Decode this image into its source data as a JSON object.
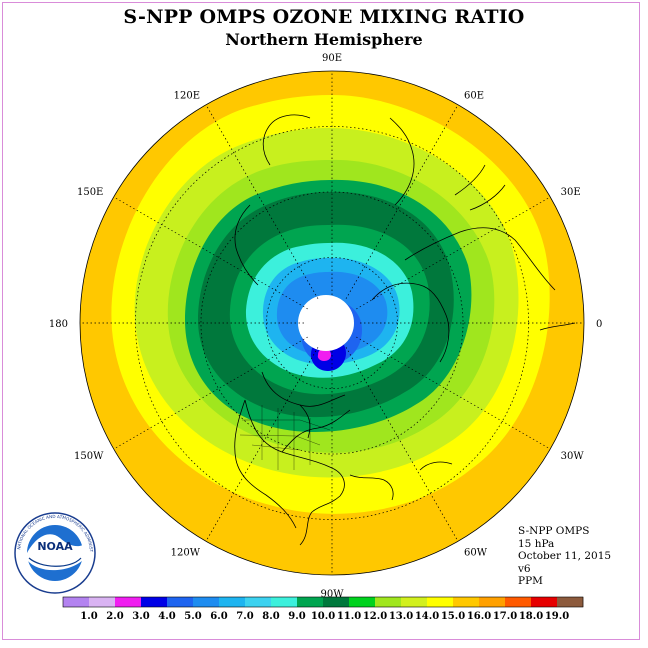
{
  "title": "S-NPP OMPS OZONE MIXING RATIO",
  "subtitle": "Northern Hemisphere",
  "meridian_labels": [
    {
      "lon": "90E",
      "angle": -90
    },
    {
      "lon": "60E",
      "angle": -60
    },
    {
      "lon": "30E",
      "angle": -30
    },
    {
      "lon": "0",
      "angle": 0
    },
    {
      "lon": "30W",
      "angle": 30
    },
    {
      "lon": "60W",
      "angle": 60
    },
    {
      "lon": "90W",
      "angle": 90
    },
    {
      "lon": "120W",
      "angle": 120
    },
    {
      "lon": "150W",
      "angle": 150
    },
    {
      "lon": "180",
      "angle": 180
    },
    {
      "lon": "150E",
      "angle": -150
    },
    {
      "lon": "120E",
      "angle": -120
    }
  ],
  "info": {
    "instrument": "S-NPP OMPS",
    "level": "15 hPa",
    "date": "October 11, 2015",
    "version": "v6",
    "units": "PPM"
  },
  "colorbar": {
    "ticks": [
      "1.0",
      "2.0",
      "3.0",
      "4.0",
      "5.0",
      "6.0",
      "7.0",
      "8.0",
      "9.0",
      "10.0",
      "11.0",
      "12.0",
      "13.0",
      "14.0",
      "15.0",
      "16.0",
      "17.0",
      "18.0",
      "19.0"
    ],
    "colors": [
      "#b383f0",
      "#d9b3f2",
      "#f01ef0",
      "#0000e6",
      "#1e64f0",
      "#1e8cf0",
      "#1eb4f0",
      "#3cd2f0",
      "#3cf0dc",
      "#00a550",
      "#00783c",
      "#00d21e",
      "#a0e61e",
      "#d2f01e",
      "#ffff00",
      "#ffc800",
      "#ffa000",
      "#ff5a00",
      "#e60000",
      "#8c5a3c"
    ]
  },
  "logo": {
    "text": "NOAA",
    "ring_text": "NATIONAL OCEANIC AND ATMOSPHERIC ADMINISTRATION · U.S. DEPARTMENT OF COMMERCE"
  },
  "contour_levels": [
    {
      "value": 14.0,
      "color": "#ffc800"
    },
    {
      "value": 13.0,
      "color": "#ffff00"
    },
    {
      "value": 12.0,
      "color": "#c8f01e"
    },
    {
      "value": 11.0,
      "color": "#a0e61e"
    },
    {
      "value": 10.0,
      "color": "#00a550"
    },
    {
      "value": 9.0,
      "color": "#00783c"
    },
    {
      "value": 8.0,
      "color": "#00a550"
    },
    {
      "value": 7.0,
      "color": "#3cf0dc"
    },
    {
      "value": 6.0,
      "color": "#1eb4f0"
    },
    {
      "value": 5.0,
      "color": "#1e8cf0"
    },
    {
      "value": 4.0,
      "color": "#1e64f0"
    },
    {
      "value": 3.0,
      "color": "#0000e6"
    }
  ]
}
